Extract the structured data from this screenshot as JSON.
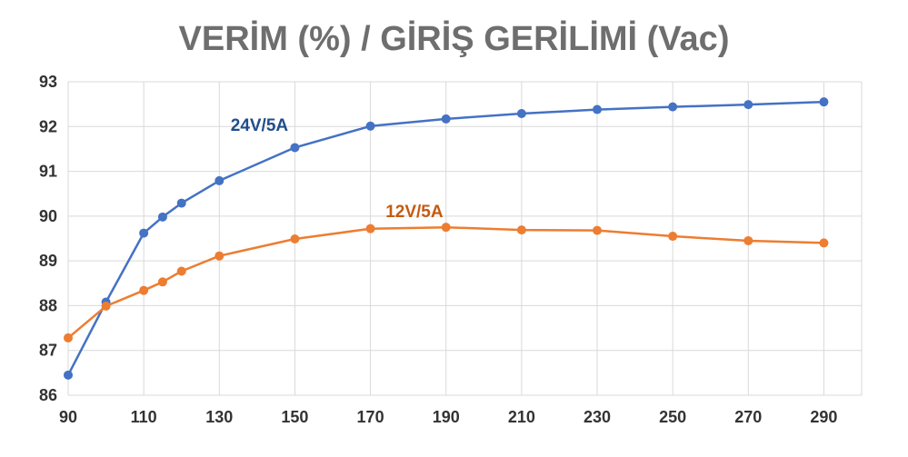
{
  "chart_data": {
    "type": "line",
    "title": "VERİM (%) / GİRİŞ GERİLİMİ (Vac)",
    "xlabel": "",
    "ylabel": "",
    "xlim": [
      90,
      300
    ],
    "ylim": [
      86,
      93
    ],
    "x_ticks": [
      90,
      110,
      130,
      150,
      170,
      190,
      210,
      230,
      250,
      270,
      290
    ],
    "x_gridlines": [
      90,
      110,
      130,
      150,
      170,
      190,
      210,
      230,
      250,
      270,
      290,
      300
    ],
    "y_ticks": [
      86,
      87,
      88,
      89,
      90,
      91,
      92,
      93
    ],
    "grid": true,
    "legend": "none",
    "series": [
      {
        "name": "24V/5A",
        "color": "#4472C4",
        "label_color": "#1F4E8C",
        "label_anchor_x": 133,
        "label_anchor_y": 91.9,
        "x": [
          90,
          100,
          110,
          115,
          120,
          130,
          150,
          170,
          190,
          210,
          230,
          250,
          270,
          290
        ],
        "y": [
          86.45,
          88.08,
          89.62,
          89.98,
          90.29,
          90.79,
          91.53,
          92.01,
          92.17,
          92.29,
          92.38,
          92.44,
          92.49,
          92.55
        ]
      },
      {
        "name": "12V/5A",
        "color": "#ED7D31",
        "label_color": "#C55A11",
        "label_anchor_x": 174,
        "label_anchor_y": 89.98,
        "x": [
          90,
          100,
          110,
          115,
          120,
          130,
          150,
          170,
          190,
          210,
          230,
          250,
          270,
          290
        ],
        "y": [
          87.28,
          87.99,
          88.34,
          88.53,
          88.77,
          89.11,
          89.49,
          89.72,
          89.75,
          89.69,
          89.68,
          89.55,
          89.45,
          89.4
        ]
      }
    ]
  }
}
